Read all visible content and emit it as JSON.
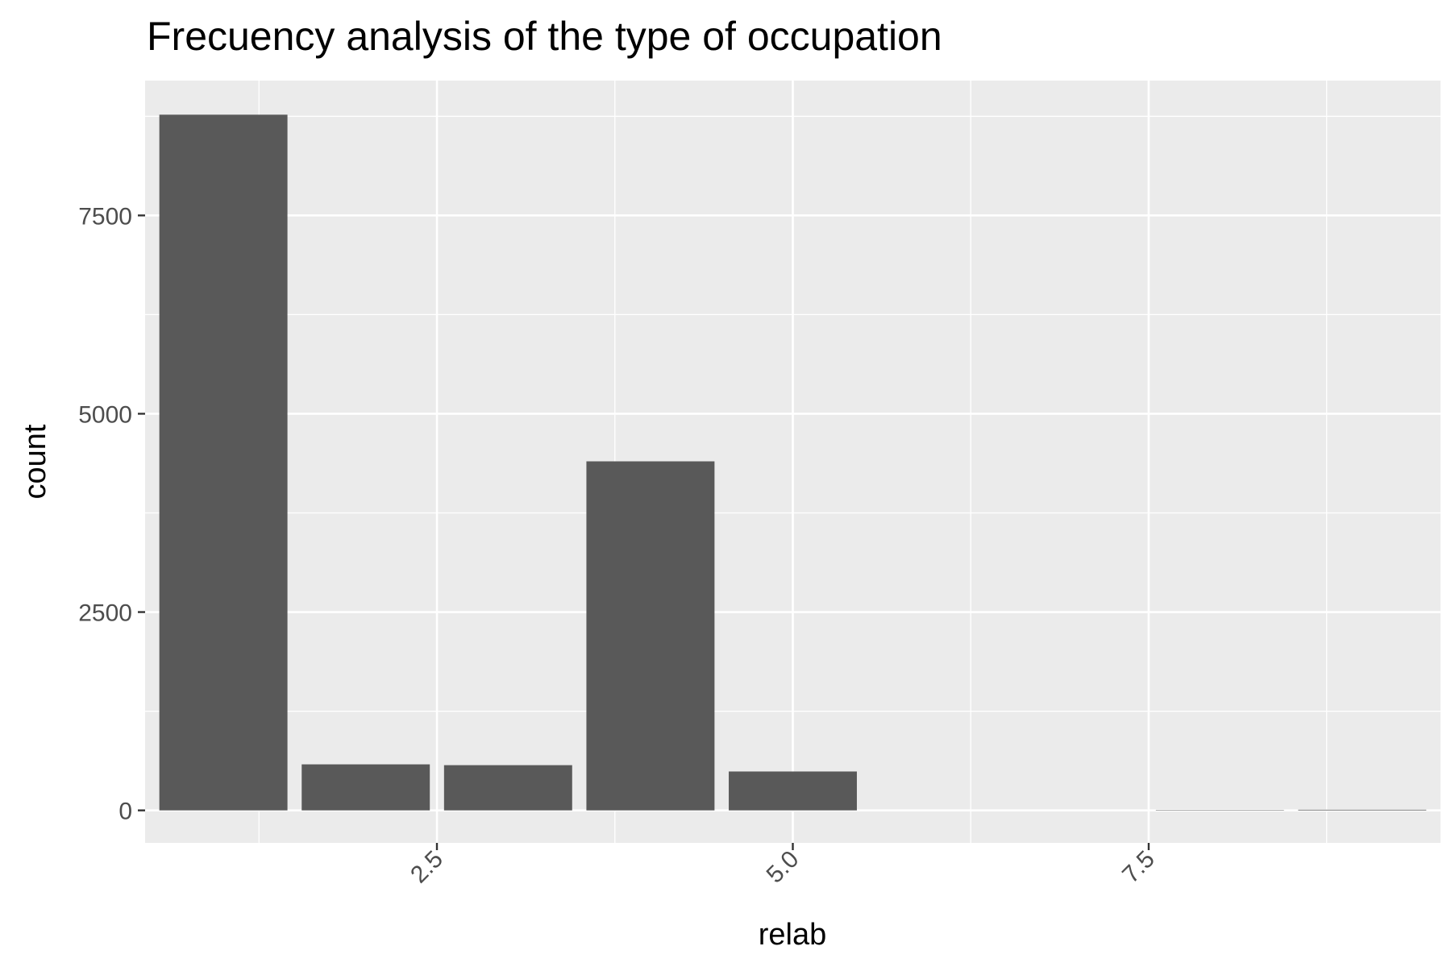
{
  "chart_data": {
    "type": "bar",
    "title": "Frecuency analysis of the type of occupation",
    "xlabel": "relab",
    "ylabel": "count",
    "x": [
      1,
      2,
      3,
      4,
      5,
      6,
      7,
      8,
      9
    ],
    "values": [
      8770,
      580,
      570,
      4400,
      490,
      0,
      0,
      5,
      8
    ],
    "xlim": [
      0.45,
      9.55
    ],
    "ylim": [
      -410,
      9200
    ],
    "x_ticks": [
      {
        "value": 2.5,
        "label": "2.5"
      },
      {
        "value": 5.0,
        "label": "5.0"
      },
      {
        "value": 7.5,
        "label": "7.5"
      }
    ],
    "y_ticks": [
      {
        "value": 0,
        "label": "0"
      },
      {
        "value": 2500,
        "label": "2500"
      },
      {
        "value": 5000,
        "label": "5000"
      },
      {
        "value": 7500,
        "label": "7500"
      }
    ],
    "x_minor": [
      1.25,
      3.75,
      6.25,
      8.75
    ],
    "y_minor": [
      1250,
      3750,
      6250,
      8750
    ],
    "bar_width": 0.9,
    "grid": true,
    "colors": {
      "panel": "#ebebeb",
      "grid": "#ffffff",
      "bar": "#595959",
      "tick": "#333333"
    }
  }
}
